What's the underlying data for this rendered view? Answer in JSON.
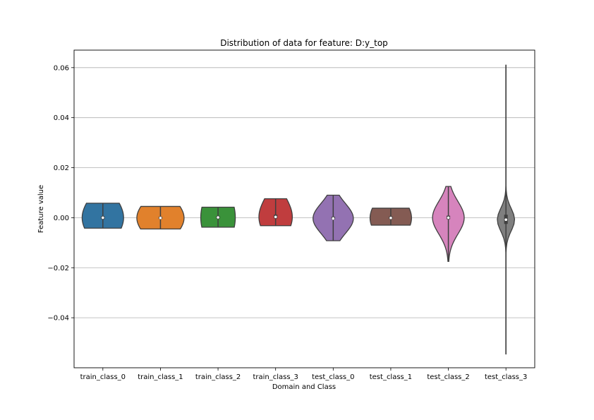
{
  "chart_data": {
    "type": "violin",
    "title": "Distribution of data for feature: D:y_top",
    "xlabel": "Domain and Class",
    "ylabel": "Feature value",
    "ylim": [
      -0.06,
      0.067
    ],
    "yticks": [
      -0.04,
      -0.02,
      0.0,
      0.02,
      0.04,
      0.06
    ],
    "ytick_labels": [
      "−0.04",
      "−0.02",
      "0.00",
      "0.02",
      "0.04",
      "0.06"
    ],
    "grid": "horizontal",
    "categories": [
      "train_class_0",
      "train_class_1",
      "train_class_2",
      "train_class_3",
      "test_class_0",
      "test_class_1",
      "test_class_2",
      "test_class_3"
    ],
    "series": [
      {
        "category": "train_class_0",
        "color": "#3274a1",
        "min": -0.0042,
        "max": 0.0058,
        "q1": -0.0006,
        "median": 0.0,
        "q3": 0.0006,
        "half_width": 0.0085,
        "width": 0.72
      },
      {
        "category": "train_class_1",
        "color": "#e1812c",
        "min": -0.0045,
        "max": 0.0045,
        "q1": -0.0005,
        "median": -0.0001,
        "q3": 0.0004,
        "half_width": 0.0075,
        "width": 0.82
      },
      {
        "category": "train_class_2",
        "color": "#3a923a",
        "min": -0.0038,
        "max": 0.0042,
        "q1": -0.0004,
        "median": 0.0001,
        "q3": 0.0007,
        "half_width": 0.011,
        "width": 0.6
      },
      {
        "category": "train_class_3",
        "color": "#c03d3e",
        "min": -0.0032,
        "max": 0.0076,
        "q1": -0.0003,
        "median": 0.0003,
        "q3": 0.0012,
        "half_width": 0.008,
        "width": 0.58
      },
      {
        "category": "test_class_0",
        "color": "#9372b2",
        "min": -0.0092,
        "max": 0.009,
        "q1": -0.0007,
        "median": -0.0003,
        "q3": 0.0004,
        "half_width": 0.006,
        "width": 0.7
      },
      {
        "category": "test_class_1",
        "color": "#845b53",
        "min": -0.003,
        "max": 0.0038,
        "q1": -0.0005,
        "median": -0.0001,
        "q3": 0.0005,
        "half_width": 0.008,
        "width": 0.72
      },
      {
        "category": "test_class_2",
        "color": "#d684bd",
        "min": -0.0175,
        "max": 0.0125,
        "q1": -0.0006,
        "median": 0.0,
        "q3": 0.0008,
        "half_width": 0.0065,
        "width": 0.55
      },
      {
        "category": "test_class_3",
        "color": "#7f7f7f",
        "min": -0.0545,
        "max": 0.061,
        "q1": -0.0025,
        "median": -0.0008,
        "q3": 0.0012,
        "half_width": 0.0045,
        "width": 0.3
      }
    ]
  }
}
